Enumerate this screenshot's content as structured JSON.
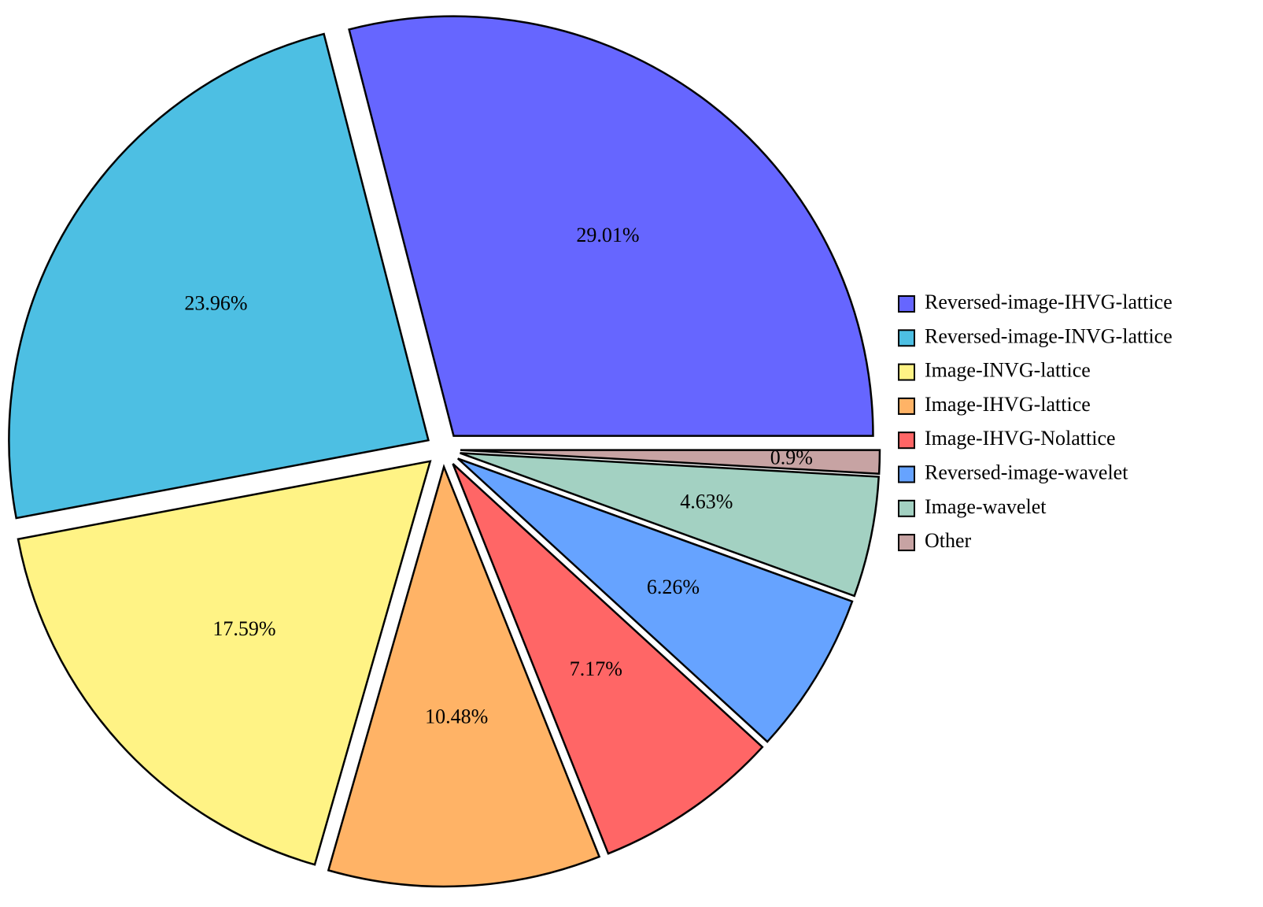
{
  "chart_data": {
    "type": "pie",
    "title": "",
    "legend_position": "right",
    "slices": [
      {
        "label": "Reversed-image-IHVG-lattice",
        "value": 29.01,
        "display": "29.01%",
        "color": "#6666ff"
      },
      {
        "label": "Reversed-image-INVG-lattice",
        "value": 23.96,
        "display": "23.96%",
        "color": "#4dbfe3"
      },
      {
        "label": "Image-INVG-lattice",
        "value": 17.59,
        "display": "17.59%",
        "color": "#fff385"
      },
      {
        "label": "Image-IHVG-lattice",
        "value": 10.48,
        "display": "10.48%",
        "color": "#ffb366"
      },
      {
        "label": "Image-IHVG-Nolattice",
        "value": 7.17,
        "display": "7.17%",
        "color": "#ff6666"
      },
      {
        "label": "Reversed-image-wavelet",
        "value": 6.26,
        "display": "6.26%",
        "color": "#66a3ff"
      },
      {
        "label": "Image-wavelet",
        "value": 4.63,
        "display": "4.63%",
        "color": "#a3d1c2"
      },
      {
        "label": "Other",
        "value": 0.9,
        "display": "0.9%",
        "color": "#c7a3a3"
      }
    ]
  }
}
